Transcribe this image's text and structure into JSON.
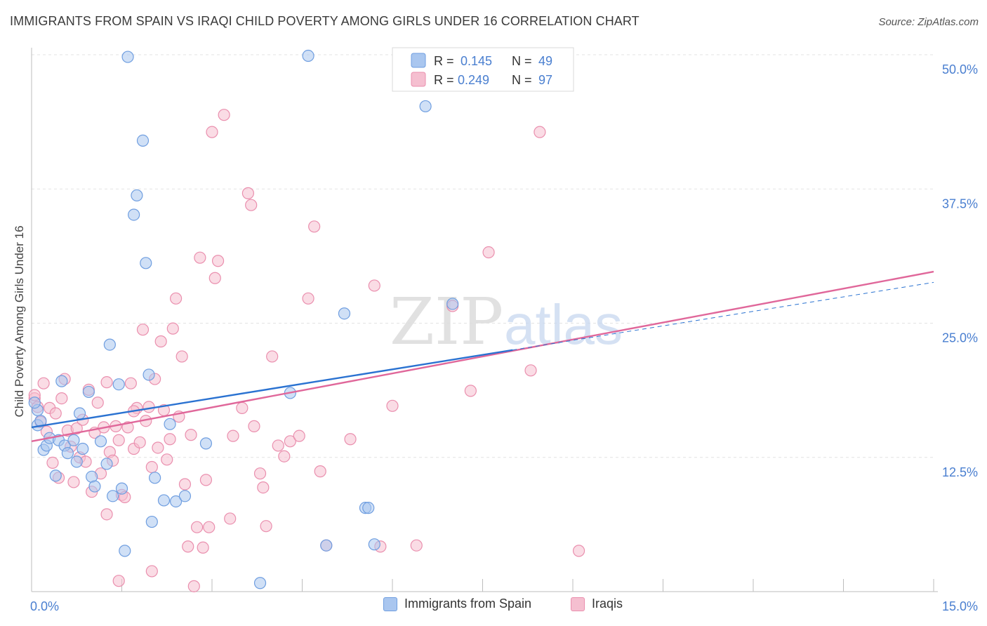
{
  "header": {
    "title": "IMMIGRANTS FROM SPAIN VS IRAQI CHILD POVERTY AMONG GIRLS UNDER 16 CORRELATION CHART",
    "source": "Source: ZipAtlas.com"
  },
  "watermark": {
    "part1": "ZIP",
    "part2": "atlas"
  },
  "colors": {
    "blue_fill": "#a9c6ef",
    "blue_stroke": "#6f9ee0",
    "blue_line": "#2a72d1",
    "pink_fill": "#f5bfd0",
    "pink_stroke": "#ea8fae",
    "pink_line": "#e0679a",
    "axis_label": "#4a7fd0"
  },
  "chart_data": {
    "type": "scatter",
    "xlabel": "",
    "ylabel": "Child Poverty Among Girls Under 16",
    "xlim": [
      0,
      15
    ],
    "ylim": [
      0,
      50
    ],
    "x_tick_labels": [
      "0.0%",
      "15.0%"
    ],
    "y_ticks": [
      12.5,
      25.0,
      37.5,
      50.0
    ],
    "y_tick_labels": [
      "12.5%",
      "25.0%",
      "37.5%",
      "50.0%"
    ],
    "grid": true,
    "legend_position": "top-center",
    "legend": [
      {
        "r_label": "R =",
        "r_value": "0.145",
        "n_label": "N =",
        "n_value": "49"
      },
      {
        "r_label": "R =",
        "r_value": "0.249",
        "n_label": "N =",
        "n_value": "97"
      }
    ],
    "series": [
      {
        "name": "Immigrants from Spain",
        "trend": {
          "x": [
            0.0,
            8.0
          ],
          "y": [
            15.3,
            22.5
          ],
          "dashed_to": [
            15.0,
            28.8
          ]
        },
        "points": [
          [
            0.1,
            16.9
          ],
          [
            0.1,
            15.5
          ],
          [
            0.2,
            13.2
          ],
          [
            0.25,
            13.6
          ],
          [
            0.3,
            14.3
          ],
          [
            0.4,
            10.8
          ],
          [
            0.45,
            14.1
          ],
          [
            0.5,
            19.6
          ],
          [
            0.55,
            13.6
          ],
          [
            0.6,
            12.9
          ],
          [
            0.7,
            14.1
          ],
          [
            0.75,
            12.1
          ],
          [
            0.8,
            16.6
          ],
          [
            0.85,
            13.3
          ],
          [
            0.95,
            18.6
          ],
          [
            1.0,
            10.7
          ],
          [
            1.05,
            9.8
          ],
          [
            1.15,
            14.0
          ],
          [
            1.25,
            11.9
          ],
          [
            1.3,
            23.0
          ],
          [
            1.35,
            8.9
          ],
          [
            1.45,
            19.3
          ],
          [
            1.5,
            9.6
          ],
          [
            1.55,
            3.8
          ],
          [
            1.6,
            49.8
          ],
          [
            1.7,
            35.1
          ],
          [
            1.75,
            36.9
          ],
          [
            1.85,
            42.0
          ],
          [
            1.9,
            30.6
          ],
          [
            1.95,
            20.2
          ],
          [
            2.0,
            6.5
          ],
          [
            2.05,
            10.6
          ],
          [
            2.2,
            8.5
          ],
          [
            2.3,
            15.6
          ],
          [
            2.4,
            8.4
          ],
          [
            2.55,
            8.9
          ],
          [
            2.9,
            13.8
          ],
          [
            3.8,
            0.8
          ],
          [
            4.3,
            18.5
          ],
          [
            4.6,
            49.9
          ],
          [
            4.9,
            4.3
          ],
          [
            5.2,
            25.9
          ],
          [
            5.55,
            7.8
          ],
          [
            5.6,
            7.8
          ],
          [
            5.7,
            4.4
          ],
          [
            6.55,
            45.2
          ],
          [
            7.0,
            26.8
          ],
          [
            0.05,
            17.6
          ],
          [
            0.15,
            15.9
          ]
        ]
      },
      {
        "name": "Iraqis",
        "trend": {
          "x": [
            0.0,
            15.0
          ],
          "y": [
            14.0,
            29.8
          ]
        },
        "points": [
          [
            0.05,
            18.0
          ],
          [
            0.1,
            17.2
          ],
          [
            0.15,
            15.8
          ],
          [
            0.2,
            19.4
          ],
          [
            0.25,
            14.9
          ],
          [
            0.3,
            17.1
          ],
          [
            0.35,
            12.0
          ],
          [
            0.4,
            16.6
          ],
          [
            0.45,
            10.6
          ],
          [
            0.5,
            18.0
          ],
          [
            0.55,
            19.8
          ],
          [
            0.6,
            15.0
          ],
          [
            0.65,
            13.5
          ],
          [
            0.7,
            10.2
          ],
          [
            0.75,
            15.2
          ],
          [
            0.8,
            12.5
          ],
          [
            0.85,
            16.0
          ],
          [
            0.9,
            12.1
          ],
          [
            0.95,
            18.8
          ],
          [
            1.0,
            9.3
          ],
          [
            1.05,
            14.8
          ],
          [
            1.1,
            17.6
          ],
          [
            1.15,
            11.0
          ],
          [
            1.2,
            15.3
          ],
          [
            1.25,
            7.2
          ],
          [
            1.3,
            13.0
          ],
          [
            1.35,
            12.2
          ],
          [
            1.4,
            15.4
          ],
          [
            1.45,
            14.1
          ],
          [
            1.5,
            9.0
          ],
          [
            1.55,
            8.8
          ],
          [
            1.6,
            15.3
          ],
          [
            1.65,
            19.4
          ],
          [
            1.7,
            13.3
          ],
          [
            1.75,
            17.1
          ],
          [
            1.8,
            13.9
          ],
          [
            1.85,
            24.4
          ],
          [
            1.9,
            15.9
          ],
          [
            1.95,
            17.2
          ],
          [
            2.0,
            11.6
          ],
          [
            2.05,
            19.8
          ],
          [
            2.1,
            13.4
          ],
          [
            2.15,
            23.3
          ],
          [
            2.2,
            16.9
          ],
          [
            2.25,
            12.3
          ],
          [
            2.3,
            14.2
          ],
          [
            2.35,
            24.5
          ],
          [
            2.4,
            27.3
          ],
          [
            2.45,
            16.3
          ],
          [
            2.5,
            21.9
          ],
          [
            2.55,
            10.0
          ],
          [
            2.6,
            4.2
          ],
          [
            2.65,
            14.6
          ],
          [
            2.7,
            0.5
          ],
          [
            2.75,
            6.0
          ],
          [
            2.8,
            31.1
          ],
          [
            2.85,
            4.1
          ],
          [
            2.9,
            10.4
          ],
          [
            2.95,
            6.0
          ],
          [
            3.0,
            42.8
          ],
          [
            3.05,
            29.2
          ],
          [
            3.1,
            30.8
          ],
          [
            3.2,
            44.4
          ],
          [
            3.3,
            6.8
          ],
          [
            3.35,
            14.5
          ],
          [
            3.5,
            17.1
          ],
          [
            3.6,
            37.1
          ],
          [
            3.65,
            36.0
          ],
          [
            3.7,
            15.4
          ],
          [
            3.8,
            11.0
          ],
          [
            3.85,
            9.7
          ],
          [
            3.9,
            6.1
          ],
          [
            4.0,
            21.9
          ],
          [
            4.1,
            13.6
          ],
          [
            4.2,
            12.6
          ],
          [
            4.3,
            14.0
          ],
          [
            4.45,
            14.5
          ],
          [
            4.6,
            27.3
          ],
          [
            4.7,
            34.0
          ],
          [
            4.8,
            11.2
          ],
          [
            4.9,
            4.3
          ],
          [
            5.3,
            14.2
          ],
          [
            5.7,
            28.5
          ],
          [
            5.8,
            4.2
          ],
          [
            6.0,
            17.3
          ],
          [
            6.4,
            4.3
          ],
          [
            7.0,
            26.6
          ],
          [
            7.3,
            18.7
          ],
          [
            7.6,
            31.6
          ],
          [
            8.3,
            20.6
          ],
          [
            8.45,
            42.8
          ],
          [
            9.1,
            3.8
          ],
          [
            1.7,
            16.8
          ],
          [
            2.0,
            1.9
          ],
          [
            1.45,
            1.0
          ],
          [
            1.25,
            19.5
          ],
          [
            0.05,
            18.3
          ]
        ]
      }
    ]
  }
}
